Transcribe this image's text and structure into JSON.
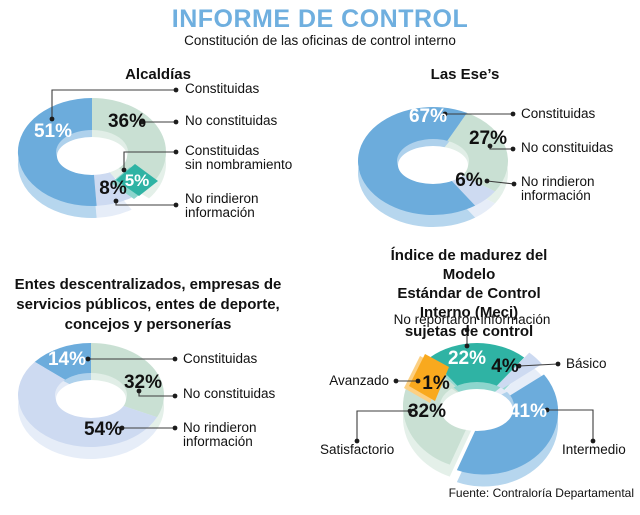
{
  "header": {
    "title": "INFORME DE CONTROL",
    "subtitle": "Constitución de las oficinas de control interno",
    "accent_color": "#6FAFDF"
  },
  "footer": {
    "source": "Fuente: Contraloría Departamental"
  },
  "chart_data": [
    {
      "type": "pie",
      "variant": "donut-3d",
      "title": "Alcaldías",
      "slices": [
        {
          "label": "Constituidas",
          "value": 51,
          "color": "#6CACDC"
        },
        {
          "label": "No constituidas",
          "value": 36,
          "color": "#C9E0D3"
        },
        {
          "label": "Constituidas\nsin nombramiento",
          "value": 5,
          "color": "#2FB3A4"
        },
        {
          "label": "No rindieron\ninformación",
          "value": 8,
          "color": "#CDDAF1"
        }
      ]
    },
    {
      "type": "pie",
      "variant": "donut-3d",
      "title": "Las Ese’s",
      "slices": [
        {
          "label": "Constituidas",
          "value": 67,
          "color": "#6CACDC"
        },
        {
          "label": "No constituidas",
          "value": 27,
          "color": "#C9E0D3"
        },
        {
          "label": "No rindieron\ninformación",
          "value": 6,
          "color": "#CDDAF1"
        }
      ]
    },
    {
      "type": "pie",
      "variant": "donut-3d",
      "title": "Entes descentralizados, empresas de\nservicios públicos, entes de deporte,\nconcejos y personerías",
      "slices": [
        {
          "label": "Constituidas",
          "value": 14,
          "color": "#6CACDC"
        },
        {
          "label": "No constituidas",
          "value": 32,
          "color": "#C9E0D3"
        },
        {
          "label": "No rindieron\ninformación",
          "value": 54,
          "color": "#CDDAF1"
        }
      ]
    },
    {
      "type": "pie",
      "variant": "donut-3d",
      "title": "Índice de madurez del Modelo\nEstándar de Control Interno (Meci)\nsujetas de control",
      "slices": [
        {
          "label": "No reportaron información",
          "value": 22,
          "color": "#2FB3A4"
        },
        {
          "label": "Básico",
          "value": 4,
          "color": "#CDDAF1"
        },
        {
          "label": "Intermedio",
          "value": 41,
          "color": "#6CACDC"
        },
        {
          "label": "Satisfactorio",
          "value": 32,
          "color": "#C9E0D3"
        },
        {
          "label": "Avanzado",
          "value": 1,
          "color": "#F9A91E"
        }
      ]
    }
  ]
}
